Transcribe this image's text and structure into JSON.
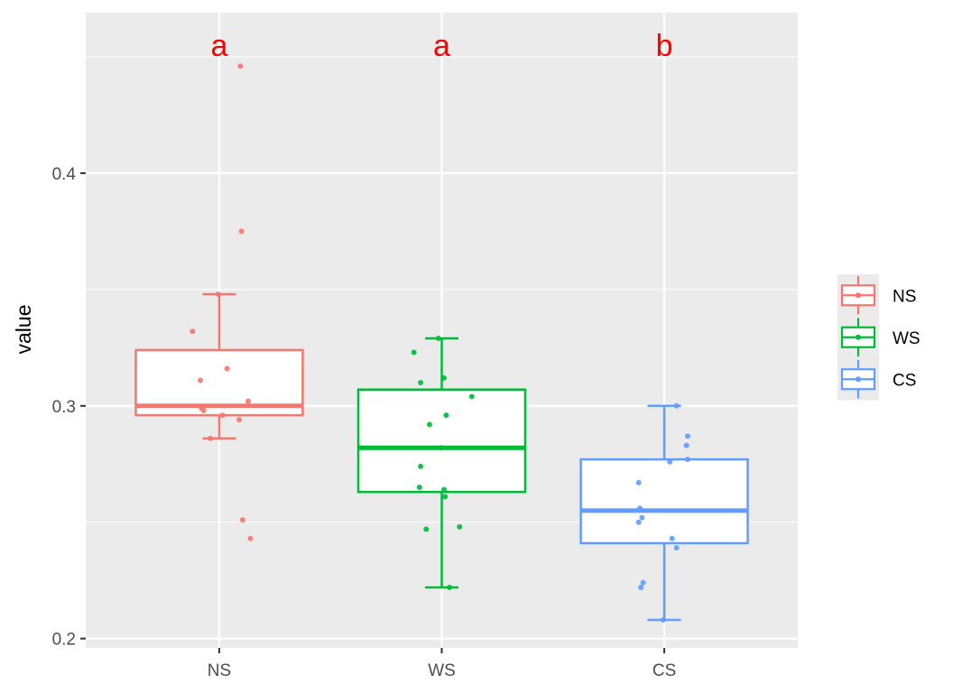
{
  "chart_data": {
    "type": "boxplot",
    "ylabel": "value",
    "xlabel": "",
    "ylim": [
      0.196,
      0.469
    ],
    "y_ticks": [
      0.2,
      0.3,
      0.4
    ],
    "y_tick_labels": [
      "0.2",
      "0.3",
      "0.4"
    ],
    "y_minor_ticks": [
      0.25,
      0.35,
      0.45
    ],
    "grid": true,
    "legend_position": "right",
    "categories": [
      "NS",
      "WS",
      "CS"
    ],
    "groups": [
      {
        "name": "NS",
        "color": "#F8766D",
        "letter": "a",
        "whisker_low": 0.286,
        "q1": 0.296,
        "median": 0.3,
        "q3": 0.324,
        "whisker_high": 0.348,
        "points": [
          {
            "x": 1.095,
            "y": 0.446
          },
          {
            "x": 1.1,
            "y": 0.375
          },
          {
            "x": 0.995,
            "y": 0.348
          },
          {
            "x": 0.88,
            "y": 0.332
          },
          {
            "x": 1.035,
            "y": 0.316
          },
          {
            "x": 0.915,
            "y": 0.311
          },
          {
            "x": 1.13,
            "y": 0.302
          },
          {
            "x": 0.92,
            "y": 0.299
          },
          {
            "x": 0.93,
            "y": 0.298
          },
          {
            "x": 1.015,
            "y": 0.296
          },
          {
            "x": 1.09,
            "y": 0.294
          },
          {
            "x": 0.96,
            "y": 0.286
          },
          {
            "x": 1.105,
            "y": 0.251
          },
          {
            "x": 1.14,
            "y": 0.243
          }
        ]
      },
      {
        "name": "WS",
        "color": "#00BA38",
        "letter": "a",
        "whisker_low": 0.222,
        "q1": 0.263,
        "median": 0.282,
        "q3": 0.307,
        "whisker_high": 0.329,
        "points": [
          {
            "x": 1.985,
            "y": 0.329
          },
          {
            "x": 1.875,
            "y": 0.323
          },
          {
            "x": 2.01,
            "y": 0.312
          },
          {
            "x": 1.905,
            "y": 0.31
          },
          {
            "x": 2.135,
            "y": 0.304
          },
          {
            "x": 2.02,
            "y": 0.296
          },
          {
            "x": 1.945,
            "y": 0.292
          },
          {
            "x": 1.995,
            "y": 0.282
          },
          {
            "x": 1.905,
            "y": 0.274
          },
          {
            "x": 2.01,
            "y": 0.264
          },
          {
            "x": 1.9,
            "y": 0.265
          },
          {
            "x": 2.015,
            "y": 0.261
          },
          {
            "x": 2.08,
            "y": 0.248
          },
          {
            "x": 1.93,
            "y": 0.247
          },
          {
            "x": 2.035,
            "y": 0.222
          }
        ]
      },
      {
        "name": "CS",
        "color": "#619CFF",
        "letter": "b",
        "whisker_low": 0.208,
        "q1": 0.241,
        "median": 0.255,
        "q3": 0.277,
        "whisker_high": 0.3,
        "points": [
          {
            "x": 3.055,
            "y": 0.3
          },
          {
            "x": 3.105,
            "y": 0.287
          },
          {
            "x": 3.1,
            "y": 0.283
          },
          {
            "x": 3.105,
            "y": 0.277
          },
          {
            "x": 3.025,
            "y": 0.276
          },
          {
            "x": 2.885,
            "y": 0.267
          },
          {
            "x": 2.89,
            "y": 0.256
          },
          {
            "x": 2.9,
            "y": 0.252
          },
          {
            "x": 2.885,
            "y": 0.25
          },
          {
            "x": 3.035,
            "y": 0.243
          },
          {
            "x": 3.055,
            "y": 0.239
          },
          {
            "x": 2.905,
            "y": 0.224
          },
          {
            "x": 2.895,
            "y": 0.222
          },
          {
            "x": 2.995,
            "y": 0.208
          }
        ]
      }
    ]
  }
}
